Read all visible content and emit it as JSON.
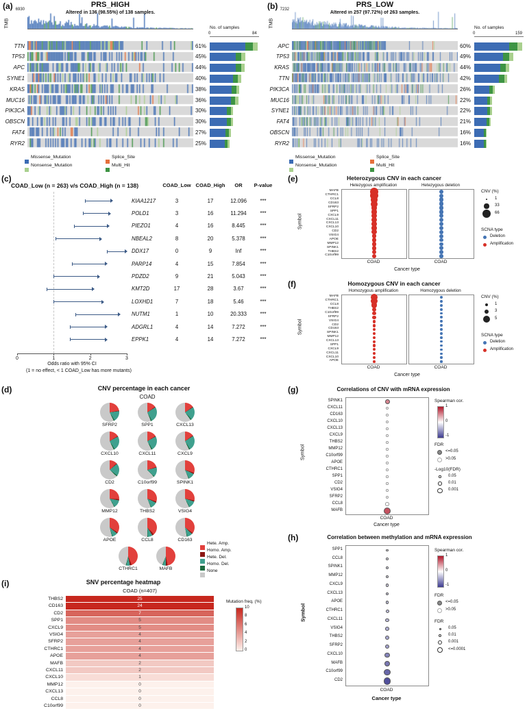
{
  "chart_data": [
    {
      "id": "a",
      "type": "oncoprint",
      "label": "(a)",
      "title": "PRS_HIGH",
      "tmb_axis_label": "TMB",
      "tmb_max": "6930",
      "altered_text": "Altered in 136 (98.55%) of 138 samples.",
      "n_samples": 138,
      "samples_axis": {
        "title": "No. of samples",
        "min": "0",
        "max": "84"
      },
      "genes": [
        {
          "name": "TTN",
          "pct": 61
        },
        {
          "name": "TP53",
          "pct": 45
        },
        {
          "name": "APC",
          "pct": 44
        },
        {
          "name": "SYNE1",
          "pct": 40
        },
        {
          "name": "KRAS",
          "pct": 38
        },
        {
          "name": "MUC16",
          "pct": 36
        },
        {
          "name": "PIK3CA",
          "pct": 30
        },
        {
          "name": "OBSCN",
          "pct": 30
        },
        {
          "name": "FAT4",
          "pct": 27
        },
        {
          "name": "RYR2",
          "pct": 25
        }
      ],
      "legend": [
        {
          "label": "Missense_Mutation",
          "color": "#3c6cb4"
        },
        {
          "label": "Splice_Site",
          "color": "#e5703c"
        },
        {
          "label": "Nonsense_Mutation",
          "color": "#a9d08e"
        },
        {
          "label": "Multi_Hit",
          "color": "#3e9444"
        }
      ]
    },
    {
      "id": "b",
      "type": "oncoprint",
      "label": "(b)",
      "title": "PRS_LOW",
      "tmb_axis_label": "TMB",
      "tmb_max": "7232",
      "altered_text": "Altered in 257 (97.72%) of 263 samples.",
      "n_samples": 263,
      "samples_axis": {
        "title": "No. of samples",
        "min": "0",
        "max": "159"
      },
      "genes": [
        {
          "name": "APC",
          "pct": 60
        },
        {
          "name": "TP53",
          "pct": 49
        },
        {
          "name": "KRAS",
          "pct": 44
        },
        {
          "name": "TTN",
          "pct": 42
        },
        {
          "name": "PIK3CA",
          "pct": 26
        },
        {
          "name": "MUC16",
          "pct": 22
        },
        {
          "name": "SYNE1",
          "pct": 22
        },
        {
          "name": "FAT4",
          "pct": 21
        },
        {
          "name": "OBSCN",
          "pct": 16
        },
        {
          "name": "RYR2",
          "pct": 16
        }
      ],
      "legend": [
        {
          "label": "Missense_Mutation",
          "color": "#3c6cb4"
        },
        {
          "label": "Splice_Site",
          "color": "#e5703c"
        },
        {
          "label": "Nonsense_Mutation",
          "color": "#a9d08e"
        },
        {
          "label": "Multi_Hit",
          "color": "#3e9444"
        }
      ]
    },
    {
      "id": "c",
      "type": "forest",
      "label": "(c)",
      "header": "COAD_Low (n = 263) v/s COAD_High (n = 138)",
      "columns": [
        "COAD_Low",
        "COAD_High",
        "OR",
        "P-value"
      ],
      "rows": [
        {
          "gene": "KIAA1217",
          "low": "3",
          "high": "17",
          "or": "12.096",
          "p": "***",
          "ci": [
            1.85,
            2.55
          ]
        },
        {
          "gene": "POLD1",
          "low": "3",
          "high": "16",
          "or": "11.294",
          "p": "***",
          "ci": [
            1.8,
            2.5
          ]
        },
        {
          "gene": "PIEZO1",
          "low": "4",
          "high": "16",
          "or": "8.445",
          "p": "***",
          "ci": [
            1.55,
            2.45
          ]
        },
        {
          "gene": "NBEAL2",
          "low": "8",
          "high": "20",
          "or": "5.378",
          "p": "***",
          "ci": [
            1.05,
            2.25
          ]
        },
        {
          "gene": "DDX17",
          "low": "0",
          "high": "9",
          "or": "Inf",
          "p": "***",
          "ci": [
            2.45,
            2.95
          ]
        },
        {
          "gene": "PARP14",
          "low": "4",
          "high": "15",
          "or": "7.854",
          "p": "***",
          "ci": [
            1.5,
            2.4
          ]
        },
        {
          "gene": "PDZD2",
          "low": "9",
          "high": "21",
          "or": "5.043",
          "p": "***",
          "ci": [
            1.0,
            2.2
          ]
        },
        {
          "gene": "KMT2D",
          "low": "17",
          "high": "28",
          "or": "3.67",
          "p": "***",
          "ci": [
            0.8,
            2.05
          ]
        },
        {
          "gene": "LOXHD1",
          "low": "7",
          "high": "18",
          "or": "5.46",
          "p": "***",
          "ci": [
            1.0,
            2.3
          ]
        },
        {
          "gene": "NUTM1",
          "low": "1",
          "high": "10",
          "or": "20.333",
          "p": "***",
          "ci": [
            1.6,
            2.75
          ]
        },
        {
          "gene": "ADGRL1",
          "low": "4",
          "high": "14",
          "or": "7.272",
          "p": "***",
          "ci": [
            1.45,
            2.4
          ]
        },
        {
          "gene": "EPPK1",
          "low": "4",
          "high": "14",
          "or": "7.272",
          "p": "***",
          "ci": [
            1.45,
            2.4
          ]
        }
      ],
      "x_ticks": [
        "0",
        "1",
        "2",
        "3"
      ],
      "xlabel1": "Odds ratio with 95% CI",
      "xlabel2": "(1 = no effect, < 1 COAD_Low has more mutants)"
    },
    {
      "id": "d",
      "type": "pie-grid",
      "label": "(d)",
      "title": "CNV percentage in each cancer",
      "cancer": "COAD",
      "pies": [
        {
          "gene": "SFRP2",
          "slices": [
            22,
            1,
            18,
            2,
            57
          ]
        },
        {
          "gene": "SPP1",
          "slices": [
            15,
            1,
            26,
            2,
            56
          ]
        },
        {
          "gene": "CXCL13",
          "slices": [
            15,
            1,
            22,
            2,
            60
          ]
        },
        {
          "gene": "CXCL10",
          "slices": [
            16,
            1,
            24,
            2,
            57
          ]
        },
        {
          "gene": "CXCL11",
          "slices": [
            16,
            1,
            24,
            2,
            57
          ]
        },
        {
          "gene": "CXCL9",
          "slices": [
            15,
            1,
            25,
            2,
            57
          ]
        },
        {
          "gene": "CD2",
          "slices": [
            13,
            1,
            21,
            2,
            63
          ]
        },
        {
          "gene": "C10orf99",
          "slices": [
            20,
            1,
            16,
            1,
            62
          ]
        },
        {
          "gene": "SPINK1",
          "slices": [
            30,
            2,
            11,
            1,
            56
          ]
        },
        {
          "gene": "MMP12",
          "slices": [
            26,
            2,
            13,
            1,
            58
          ]
        },
        {
          "gene": "THBS2",
          "slices": [
            30,
            2,
            11,
            1,
            56
          ]
        },
        {
          "gene": "VSIG4",
          "slices": [
            28,
            2,
            12,
            1,
            57
          ]
        },
        {
          "gene": "APOE",
          "slices": [
            34,
            2,
            9,
            1,
            54
          ]
        },
        {
          "gene": "CCL8",
          "slices": [
            38,
            3,
            8,
            1,
            50
          ]
        },
        {
          "gene": "CD163",
          "slices": [
            35,
            2,
            9,
            1,
            53
          ]
        },
        {
          "gene": "CTHRC1",
          "slices": [
            44,
            3,
            6,
            1,
            46
          ]
        },
        {
          "gene": "MAFB",
          "slices": [
            47,
            3,
            5,
            1,
            44
          ]
        }
      ],
      "slice_labels": [
        "Hete. Amp.",
        "Homo. Amp.",
        "Hete. Del.",
        "Homo. Del.",
        "None"
      ],
      "slice_colors": [
        "#e2403c",
        "#8c1713",
        "#3fa08e",
        "#1d6b40",
        "#c9c9c9"
      ]
    },
    {
      "id": "e",
      "type": "dotplot",
      "label": "(e)",
      "title": "Heterozygous CNV in each cancer",
      "panel_titles": [
        "Hetezygous amplification",
        "Hetezygous deletion"
      ],
      "ylabel": "Symbol",
      "xtick": "COAD",
      "xlabel": "Cancer type",
      "genes": [
        "MAFB",
        "CTHRC1",
        "CCL8",
        "CD163",
        "SFRP2",
        "SPP1",
        "CXCL9",
        "CXCL11",
        "CXCL13",
        "CXCL10",
        "CD2",
        "VSIG4",
        "APOE",
        "MMP12",
        "SPINK1",
        "THBS2",
        "C10orf99"
      ],
      "amp": [
        66,
        60,
        56,
        52,
        44,
        42,
        40,
        38,
        36,
        34,
        32,
        31,
        30,
        29,
        28,
        27,
        25
      ],
      "del": [
        30,
        29,
        29,
        28,
        27,
        27,
        26,
        26,
        25,
        25,
        25,
        24,
        24,
        23,
        23,
        22,
        21
      ],
      "size_legend": {
        "title": "CNV (%)",
        "values": [
          "1",
          "33",
          "66"
        ]
      },
      "type_legend": {
        "title": "SCNA type",
        "items": [
          {
            "label": "Deletion",
            "color": "#4575b4"
          },
          {
            "label": "Amplification",
            "color": "#d73027"
          }
        ]
      }
    },
    {
      "id": "f",
      "type": "dotplot",
      "label": "(f)",
      "title": "Homozygous CNV in each cancer",
      "panel_titles": [
        "Homozygous amplification",
        "Homozygous deletion"
      ],
      "ylabel": "Symbol",
      "xtick": "COAD",
      "xlabel": "Cancer type",
      "genes": [
        "MAFB",
        "CTHRC1",
        "CCL8",
        "THBS2",
        "C10orf99",
        "SFRP2",
        "VSIG4",
        "CD2",
        "CD163",
        "SPINK1",
        "MMP12",
        "CXCL13",
        "SPP1",
        "CXCL9",
        "CXCL11",
        "CXCL10",
        "APOE"
      ],
      "amp": [
        5,
        4.5,
        4,
        2.4,
        2.2,
        1.8,
        1.7,
        1.6,
        1.5,
        1.4,
        1.3,
        1.2,
        1.1,
        1,
        1,
        0.9,
        0.8
      ],
      "del": [
        1.4,
        1.2,
        1.2,
        1.1,
        1,
        1,
        1,
        1,
        0.9,
        0.9,
        0.9,
        0.8,
        0.8,
        0.8,
        0.7,
        0.7,
        0.6
      ],
      "size_legend": {
        "title": "CNV (%)",
        "values": [
          "1",
          "3",
          "5"
        ]
      },
      "type_legend": {
        "title": "SCNA type",
        "items": [
          {
            "label": "Deletion",
            "color": "#4575b4"
          },
          {
            "label": "Amplification",
            "color": "#d73027"
          }
        ]
      }
    },
    {
      "id": "g",
      "type": "cor-dotplot",
      "label": "(g)",
      "title": "Correlations of CNV with mRNA expression",
      "ylabel": "Symbol",
      "xtick": "COAD",
      "xlabel": "Cancer type",
      "points": [
        {
          "gene": "SPINK1",
          "cor": 0.35,
          "r": 3.5,
          "sig": true
        },
        {
          "gene": "CXCL11",
          "cor": 0.18,
          "r": 2.2,
          "sig": false
        },
        {
          "gene": "CD163",
          "cor": 0.12,
          "r": 1.8,
          "sig": false
        },
        {
          "gene": "CXCL10",
          "cor": 0.15,
          "r": 2.0,
          "sig": false
        },
        {
          "gene": "CXCL13",
          "cor": 0.12,
          "r": 1.8,
          "sig": false
        },
        {
          "gene": "CXCL9",
          "cor": 0.12,
          "r": 1.8,
          "sig": false
        },
        {
          "gene": "THBS2",
          "cor": 0.1,
          "r": 1.8,
          "sig": false
        },
        {
          "gene": "MMP12",
          "cor": 0.1,
          "r": 1.6,
          "sig": false
        },
        {
          "gene": "C10orf99",
          "cor": 0.08,
          "r": 1.6,
          "sig": false
        },
        {
          "gene": "APOE",
          "cor": 0.08,
          "r": 1.6,
          "sig": false
        },
        {
          "gene": "CTHRC1",
          "cor": 0.12,
          "r": 1.8,
          "sig": false
        },
        {
          "gene": "SPP1",
          "cor": 0.1,
          "r": 1.6,
          "sig": false
        },
        {
          "gene": "CD2",
          "cor": 0.08,
          "r": 1.6,
          "sig": false
        },
        {
          "gene": "VSIG4",
          "cor": 0.1,
          "r": 1.8,
          "sig": false
        },
        {
          "gene": "SFRP2",
          "cor": 0.12,
          "r": 2.0,
          "sig": false
        },
        {
          "gene": "CCL8",
          "cor": 0.18,
          "r": 2.6,
          "sig": false
        },
        {
          "gene": "MAFB",
          "cor": 0.5,
          "r": 5.0,
          "sig": true
        }
      ],
      "color_legend": {
        "title": "Spearman cor.",
        "ticks": [
          "1",
          "0",
          "-1"
        ]
      },
      "fdr_legend": {
        "title": "FDR",
        "items": [
          "<=0.05",
          ">0.05"
        ]
      },
      "size_legend": {
        "title": "-Log10(FDR)",
        "values": [
          "0.05",
          "0.01",
          "0.001"
        ],
        "radii": [
          1.6,
          2.6,
          3.6
        ]
      }
    },
    {
      "id": "h",
      "type": "cor-dotplot",
      "label": "(h)",
      "title": "Correlation between methylation and mRNA expression",
      "ylabel": "Symbol",
      "xtick": "COAD",
      "xlabel": "Cancer type",
      "points": [
        {
          "gene": "SPP1",
          "cor": -0.06,
          "r": 1.6,
          "sig": true
        },
        {
          "gene": "CCL8",
          "cor": -0.1,
          "r": 1.9,
          "sig": true
        },
        {
          "gene": "SPINK1",
          "cor": -0.12,
          "r": 2.0,
          "sig": true
        },
        {
          "gene": "MMP12",
          "cor": -0.14,
          "r": 2.1,
          "sig": true
        },
        {
          "gene": "CXCL9",
          "cor": -0.16,
          "r": 2.2,
          "sig": true
        },
        {
          "gene": "CXCL13",
          "cor": -0.16,
          "r": 2.2,
          "sig": true
        },
        {
          "gene": "APOE",
          "cor": -0.2,
          "r": 2.4,
          "sig": true
        },
        {
          "gene": "CTHRC1",
          "cor": -0.22,
          "r": 2.5,
          "sig": true
        },
        {
          "gene": "CXCL11",
          "cor": -0.24,
          "r": 2.6,
          "sig": true
        },
        {
          "gene": "VSIG4",
          "cor": -0.28,
          "r": 2.8,
          "sig": true
        },
        {
          "gene": "THBS2",
          "cor": -0.3,
          "r": 2.9,
          "sig": true
        },
        {
          "gene": "SFRP2",
          "cor": -0.32,
          "r": 3.0,
          "sig": true
        },
        {
          "gene": "CXCL10",
          "cor": -0.42,
          "r": 3.8,
          "sig": true
        },
        {
          "gene": "MAFB",
          "cor": -0.46,
          "r": 4.2,
          "sig": true
        },
        {
          "gene": "C10orf99",
          "cor": -0.52,
          "r": 4.6,
          "sig": true
        },
        {
          "gene": "CD2",
          "cor": -0.6,
          "r": 5.2,
          "sig": true
        }
      ],
      "color_legend": {
        "title": "Spearman cor.",
        "ticks": [
          "1",
          "0",
          "-1"
        ]
      },
      "fdr_legend": {
        "title": "FDR",
        "items": [
          "<=0.05",
          ">0.05"
        ]
      },
      "size_legend": {
        "title": "FDR",
        "values": [
          "0.05",
          "0.01",
          "0.001",
          "<=0.0001"
        ],
        "radii": [
          1.5,
          2.3,
          3.1,
          4.0
        ]
      }
    },
    {
      "id": "i",
      "type": "heatmap",
      "label": "(i)",
      "title": "SNV percentage heatmap",
      "subtitle": "COAD (n=407)",
      "rows": [
        {
          "gene": "THBS2",
          "value": 25
        },
        {
          "gene": "CD163",
          "value": 24
        },
        {
          "gene": "CD2",
          "value": 7
        },
        {
          "gene": "SPP1",
          "value": 5
        },
        {
          "gene": "CXCL9",
          "value": 5
        },
        {
          "gene": "VSIG4",
          "value": 4
        },
        {
          "gene": "SFRP2",
          "value": 4
        },
        {
          "gene": "CTHRC1",
          "value": 4
        },
        {
          "gene": "APOE",
          "value": 4
        },
        {
          "gene": "MAFB",
          "value": 2
        },
        {
          "gene": "CXCL11",
          "value": 2
        },
        {
          "gene": "CXCL10",
          "value": 1
        },
        {
          "gene": "MMP12",
          "value": 0
        },
        {
          "gene": "CXCL13",
          "value": 0
        },
        {
          "gene": "CCL8",
          "value": 0
        },
        {
          "gene": "C10orf99",
          "value": 0
        }
      ],
      "legend": {
        "title": "Mutation freq. (%)",
        "ticks": [
          "10",
          "8",
          "6",
          "4",
          "2",
          "0"
        ]
      }
    }
  ]
}
